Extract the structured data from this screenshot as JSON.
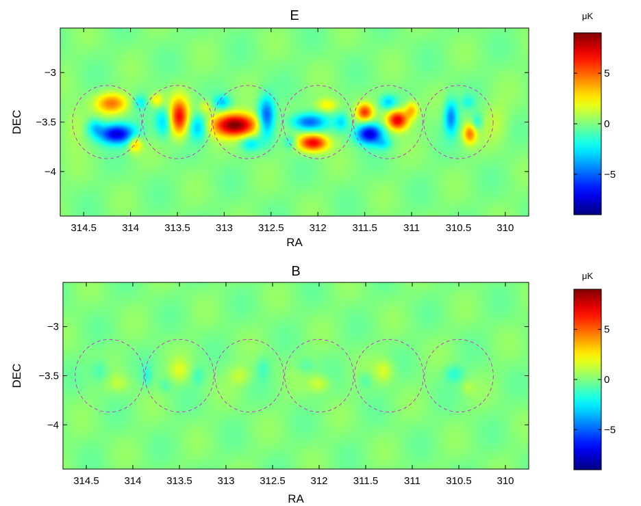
{
  "chart_data": [
    {
      "type": "heatmap",
      "title": "E",
      "xlabel": "RA",
      "ylabel": "DEC",
      "xlim": [
        314.75,
        309.75
      ],
      "ylim": [
        -4.45,
        -2.55
      ],
      "xticks": [
        314.5,
        314,
        313.5,
        313,
        312.5,
        312,
        311.5,
        311,
        310.5,
        310
      ],
      "xtick_labels": [
        "314.5",
        "314",
        "313.5",
        "313",
        "312.5",
        "312",
        "311.5",
        "311",
        "310.5",
        "310"
      ],
      "yticks": [
        -3,
        -3.5,
        -4
      ],
      "ytick_labels": [
        "−3",
        "−3.5",
        "−4"
      ],
      "colorbar": {
        "label": "μK",
        "range": [
          -9,
          9
        ],
        "ticks": [
          5,
          0,
          -5
        ],
        "tick_labels": [
          "5",
          "0",
          "−5"
        ],
        "colormap": "jet"
      },
      "circles": [
        {
          "ra": 314.25,
          "dec": -3.5,
          "r": 0.37
        },
        {
          "ra": 313.5,
          "dec": -3.5,
          "r": 0.37
        },
        {
          "ra": 312.75,
          "dec": -3.5,
          "r": 0.37
        },
        {
          "ra": 312.0,
          "dec": -3.5,
          "r": 0.37
        },
        {
          "ra": 311.25,
          "dec": -3.5,
          "r": 0.37
        },
        {
          "ra": 310.5,
          "dec": -3.5,
          "r": 0.37
        }
      ],
      "circle_color": "#cc33cc",
      "blobs": [
        {
          "ra": 314.2,
          "dec": -3.31,
          "value": 4.5,
          "sx": 0.12,
          "sy": 0.07
        },
        {
          "ra": 314.15,
          "dec": -3.62,
          "value": -7.5,
          "sx": 0.14,
          "sy": 0.07
        },
        {
          "ra": 314.38,
          "dec": -3.55,
          "value": -2.5,
          "sx": 0.06,
          "sy": 0.06
        },
        {
          "ra": 313.95,
          "dec": -3.72,
          "value": 3.5,
          "sx": 0.05,
          "sy": 0.06
        },
        {
          "ra": 313.9,
          "dec": -3.3,
          "value": -2.0,
          "sx": 0.05,
          "sy": 0.05
        },
        {
          "ra": 313.48,
          "dec": -3.45,
          "value": 6.5,
          "sx": 0.07,
          "sy": 0.13
        },
        {
          "ra": 313.65,
          "dec": -3.5,
          "value": -3.0,
          "sx": 0.06,
          "sy": 0.1
        },
        {
          "ra": 313.28,
          "dec": -3.55,
          "value": -3.5,
          "sx": 0.07,
          "sy": 0.09
        },
        {
          "ra": 313.72,
          "dec": -3.28,
          "value": 2.5,
          "sx": 0.05,
          "sy": 0.05
        },
        {
          "ra": 312.88,
          "dec": -3.53,
          "value": 9.0,
          "sx": 0.17,
          "sy": 0.08
        },
        {
          "ra": 313.02,
          "dec": -3.3,
          "value": -3.0,
          "sx": 0.06,
          "sy": 0.05
        },
        {
          "ra": 312.55,
          "dec": -3.45,
          "value": -5.5,
          "sx": 0.06,
          "sy": 0.14
        },
        {
          "ra": 312.72,
          "dec": -3.72,
          "value": -2.5,
          "sx": 0.07,
          "sy": 0.05
        },
        {
          "ra": 313.2,
          "dec": -3.35,
          "value": 2.0,
          "sx": 0.05,
          "sy": 0.05
        },
        {
          "ra": 312.1,
          "dec": -3.5,
          "value": -5.0,
          "sx": 0.13,
          "sy": 0.06
        },
        {
          "ra": 312.05,
          "dec": -3.71,
          "value": 7.0,
          "sx": 0.11,
          "sy": 0.06
        },
        {
          "ra": 312.3,
          "dec": -3.7,
          "value": -2.0,
          "sx": 0.05,
          "sy": 0.05
        },
        {
          "ra": 311.9,
          "dec": -3.33,
          "value": 2.5,
          "sx": 0.08,
          "sy": 0.05
        },
        {
          "ra": 311.75,
          "dec": -3.5,
          "value": -2.5,
          "sx": 0.05,
          "sy": 0.06
        },
        {
          "ra": 311.5,
          "dec": -3.4,
          "value": 5.5,
          "sx": 0.06,
          "sy": 0.06
        },
        {
          "ra": 311.45,
          "dec": -3.62,
          "value": -7.5,
          "sx": 0.1,
          "sy": 0.07
        },
        {
          "ra": 311.15,
          "dec": -3.48,
          "value": 7.5,
          "sx": 0.08,
          "sy": 0.07
        },
        {
          "ra": 311.25,
          "dec": -3.3,
          "value": -3.0,
          "sx": 0.06,
          "sy": 0.05
        },
        {
          "ra": 311.0,
          "dec": -3.38,
          "value": 3.5,
          "sx": 0.05,
          "sy": 0.06
        },
        {
          "ra": 311.3,
          "dec": -3.72,
          "value": -2.0,
          "sx": 0.06,
          "sy": 0.04
        },
        {
          "ra": 310.58,
          "dec": -3.45,
          "value": -4.5,
          "sx": 0.05,
          "sy": 0.12
        },
        {
          "ra": 310.38,
          "dec": -3.62,
          "value": 4.5,
          "sx": 0.05,
          "sy": 0.07
        },
        {
          "ra": 310.4,
          "dec": -3.3,
          "value": -1.5,
          "sx": 0.05,
          "sy": 0.05
        },
        {
          "ra": 310.3,
          "dec": -3.5,
          "value": -2.0,
          "sx": 0.04,
          "sy": 0.06
        },
        {
          "ra": 314.6,
          "dec": -3.55,
          "value": 1.2,
          "sx": 0.1,
          "sy": 0.15
        },
        {
          "ra": 310.1,
          "dec": -3.5,
          "value": 1.0,
          "sx": 0.1,
          "sy": 0.15
        }
      ]
    },
    {
      "type": "heatmap",
      "title": "B",
      "xlabel": "RA",
      "ylabel": "DEC",
      "xlim": [
        314.75,
        309.75
      ],
      "ylim": [
        -4.45,
        -2.55
      ],
      "xticks": [
        314.5,
        314,
        313.5,
        313,
        312.5,
        312,
        311.5,
        311,
        310.5,
        310
      ],
      "xtick_labels": [
        "314.5",
        "314",
        "313.5",
        "313",
        "312.5",
        "312",
        "311.5",
        "311",
        "310.5",
        "310"
      ],
      "yticks": [
        -3,
        -3.5,
        -4
      ],
      "ytick_labels": [
        "−3",
        "−3.5",
        "−4"
      ],
      "colorbar": {
        "label": "μK",
        "range": [
          -9,
          9
        ],
        "ticks": [
          5,
          0,
          -5
        ],
        "tick_labels": [
          "5",
          "0",
          "−5"
        ],
        "colormap": "jet"
      },
      "circles": [
        {
          "ra": 314.25,
          "dec": -3.5,
          "r": 0.37
        },
        {
          "ra": 313.5,
          "dec": -3.5,
          "r": 0.37
        },
        {
          "ra": 312.75,
          "dec": -3.5,
          "r": 0.37
        },
        {
          "ra": 312.0,
          "dec": -3.5,
          "r": 0.37
        },
        {
          "ra": 311.25,
          "dec": -3.5,
          "r": 0.37
        },
        {
          "ra": 310.5,
          "dec": -3.5,
          "r": 0.37
        }
      ],
      "circle_color": "#cc33cc",
      "blobs": [
        {
          "ra": 314.35,
          "dec": -3.45,
          "value": -1.2,
          "sx": 0.07,
          "sy": 0.08
        },
        {
          "ra": 314.15,
          "dec": -3.58,
          "value": 1.0,
          "sx": 0.08,
          "sy": 0.06
        },
        {
          "ra": 313.5,
          "dec": -3.45,
          "value": 1.5,
          "sx": 0.07,
          "sy": 0.08
        },
        {
          "ra": 313.3,
          "dec": -3.5,
          "value": -1.0,
          "sx": 0.05,
          "sy": 0.07
        },
        {
          "ra": 313.65,
          "dec": -3.6,
          "value": -0.8,
          "sx": 0.05,
          "sy": 0.05
        },
        {
          "ra": 312.85,
          "dec": -3.5,
          "value": 1.2,
          "sx": 0.08,
          "sy": 0.07
        },
        {
          "ra": 312.6,
          "dec": -3.42,
          "value": -1.0,
          "sx": 0.05,
          "sy": 0.08
        },
        {
          "ra": 312.0,
          "dec": -3.58,
          "value": 1.5,
          "sx": 0.08,
          "sy": 0.06
        },
        {
          "ra": 312.15,
          "dec": -3.4,
          "value": -0.8,
          "sx": 0.06,
          "sy": 0.05
        },
        {
          "ra": 311.3,
          "dec": -3.45,
          "value": 1.5,
          "sx": 0.07,
          "sy": 0.08
        },
        {
          "ra": 311.5,
          "dec": -3.55,
          "value": -1.0,
          "sx": 0.05,
          "sy": 0.06
        },
        {
          "ra": 310.55,
          "dec": -3.48,
          "value": -1.5,
          "sx": 0.07,
          "sy": 0.06
        },
        {
          "ra": 310.4,
          "dec": -3.62,
          "value": 0.8,
          "sx": 0.05,
          "sy": 0.05
        },
        {
          "ra": 313.85,
          "dec": -3.5,
          "value": -1.2,
          "sx": 0.04,
          "sy": 0.08
        }
      ]
    }
  ]
}
